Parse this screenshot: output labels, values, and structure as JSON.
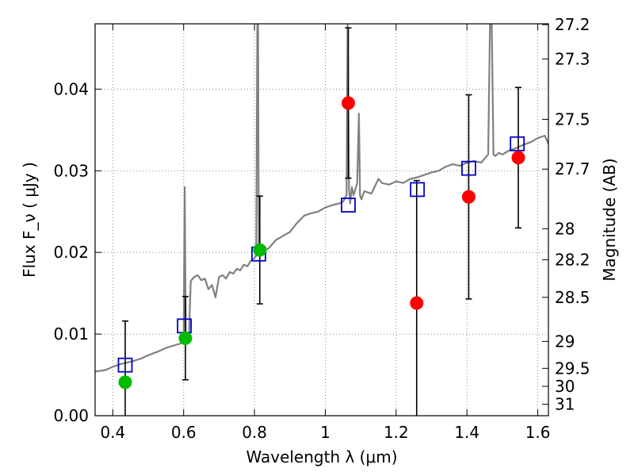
{
  "chart_data": {
    "type": "scatter",
    "xlabel": "Wavelength  λ (μm)",
    "ylabel": "Flux  F_ν  ( μJy )",
    "y2label": "Magnitude (AB)",
    "xlim": [
      0.35,
      1.63
    ],
    "ylim": [
      0.0,
      0.048
    ],
    "grid": true,
    "x_ticks": [
      0.4,
      0.6,
      0.8,
      1.0,
      1.2,
      1.4,
      1.6
    ],
    "x_tick_labels": [
      "0.4",
      "0.6",
      "0.8",
      "1",
      "1.2",
      "1.4",
      "1.6"
    ],
    "y_ticks": [
      0.0,
      0.01,
      0.02,
      0.03,
      0.04
    ],
    "y_tick_labels": [
      "0.00",
      "0.01",
      "0.02",
      "0.03",
      "0.04"
    ],
    "y2_ticks": [
      {
        "label": "27.2",
        "flux": 0.0479
      },
      {
        "label": "27.3",
        "flux": 0.0437
      },
      {
        "label": "27.5",
        "flux": 0.0363
      },
      {
        "label": "27.7",
        "flux": 0.0302
      },
      {
        "label": "28",
        "flux": 0.0229
      },
      {
        "label": "28.2",
        "flux": 0.0191
      },
      {
        "label": "28.5",
        "flux": 0.0145
      },
      {
        "label": "29",
        "flux": 0.0091
      },
      {
        "label": "29.5",
        "flux": 0.0058
      },
      {
        "label": "30",
        "flux": 0.0036
      },
      {
        "label": "31",
        "flux": 0.0014
      }
    ],
    "colors": {
      "spectrum": "#808080",
      "model": "#0000cc",
      "green": "#00bb00",
      "red": "#ff0000",
      "errorbar": "#000000",
      "grid": "#888888"
    },
    "series": [
      {
        "kind": "line",
        "x": [
          0.35,
          0.38,
          0.4,
          0.42,
          0.45,
          0.48,
          0.5,
          0.53,
          0.55,
          0.58,
          0.595,
          0.6,
          0.603,
          0.606,
          0.61,
          0.615,
          0.62,
          0.63,
          0.64,
          0.65,
          0.66,
          0.67,
          0.68,
          0.69,
          0.7,
          0.71,
          0.72,
          0.73,
          0.74,
          0.75,
          0.76,
          0.77,
          0.78,
          0.79,
          0.8,
          0.805,
          0.808,
          0.81,
          0.812,
          0.815,
          0.82,
          0.84,
          0.86,
          0.88,
          0.9,
          0.92,
          0.94,
          0.96,
          0.98,
          1.0,
          1.02,
          1.04,
          1.05,
          1.06,
          1.063,
          1.067,
          1.07,
          1.075,
          1.08,
          1.09,
          1.095,
          1.098,
          1.102,
          1.11,
          1.13,
          1.15,
          1.16,
          1.18,
          1.2,
          1.22,
          1.24,
          1.26,
          1.28,
          1.3,
          1.32,
          1.34,
          1.36,
          1.38,
          1.4,
          1.42,
          1.44,
          1.45,
          1.46,
          1.465,
          1.47,
          1.475,
          1.48,
          1.49,
          1.5,
          1.52,
          1.54,
          1.56,
          1.58,
          1.6,
          1.62,
          1.63
        ],
        "y": [
          0.0054,
          0.0056,
          0.006,
          0.0063,
          0.0066,
          0.007,
          0.0074,
          0.0079,
          0.0083,
          0.0087,
          0.0089,
          0.009,
          0.028,
          0.0095,
          0.01,
          0.0097,
          0.0165,
          0.017,
          0.0172,
          0.0166,
          0.0168,
          0.0155,
          0.016,
          0.0145,
          0.017,
          0.0172,
          0.0168,
          0.0176,
          0.0174,
          0.018,
          0.0178,
          0.0185,
          0.0183,
          0.019,
          0.0193,
          0.0196,
          0.048,
          0.048,
          0.021,
          0.0198,
          0.02,
          0.0205,
          0.0215,
          0.022,
          0.0225,
          0.0236,
          0.0245,
          0.0248,
          0.025,
          0.0255,
          0.0258,
          0.026,
          0.0262,
          0.027,
          0.048,
          0.0278,
          0.026,
          0.028,
          0.027,
          0.0285,
          0.037,
          0.027,
          0.0265,
          0.0275,
          0.0272,
          0.029,
          0.0285,
          0.0283,
          0.0287,
          0.0285,
          0.029,
          0.0292,
          0.0295,
          0.0298,
          0.03,
          0.0305,
          0.0308,
          0.0306,
          0.031,
          0.0312,
          0.031,
          0.0315,
          0.032,
          0.048,
          0.048,
          0.032,
          0.0318,
          0.0322,
          0.032,
          0.0325,
          0.0328,
          0.0332,
          0.0335,
          0.034,
          0.0343,
          0.0333
        ],
        "color": "#808080"
      },
      {
        "kind": "model_squares",
        "x": [
          0.435,
          0.602,
          0.812,
          1.065,
          1.26,
          1.405,
          1.542
        ],
        "y": [
          0.0062,
          0.011,
          0.0198,
          0.0258,
          0.0277,
          0.0303,
          0.0333
        ],
        "color": "#0000cc"
      },
      {
        "kind": "observed_green",
        "x": [
          0.435,
          0.605,
          0.815
        ],
        "y": [
          0.0041,
          0.0095,
          0.0203
        ],
        "yerr": [
          0.0075,
          0.0051,
          0.0066
        ],
        "color": "#00bb00"
      },
      {
        "kind": "observed_red",
        "x": [
          1.065,
          1.258,
          1.405,
          1.545
        ],
        "y": [
          0.0383,
          0.0138,
          0.0268,
          0.0316
        ],
        "yerr": [
          0.0092,
          0.015,
          0.0125,
          0.0086
        ],
        "color": "#ff0000"
      }
    ]
  }
}
